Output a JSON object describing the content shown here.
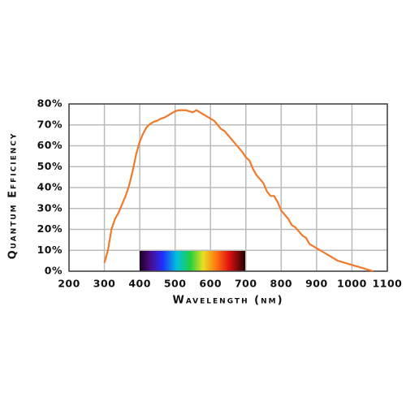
{
  "chart_data": {
    "type": "line",
    "x_label": "Wavelength (nm)",
    "y_label": "Quantum Efficiency",
    "x": [
      300,
      310,
      320,
      330,
      340,
      350,
      360,
      370,
      380,
      390,
      400,
      410,
      420,
      430,
      440,
      450,
      460,
      470,
      480,
      490,
      500,
      510,
      520,
      530,
      540,
      550,
      560,
      570,
      580,
      590,
      600,
      610,
      620,
      630,
      640,
      650,
      660,
      670,
      680,
      690,
      700,
      710,
      720,
      730,
      740,
      750,
      760,
      770,
      780,
      790,
      800,
      810,
      820,
      830,
      840,
      850,
      860,
      870,
      880,
      890,
      900,
      920,
      940,
      960,
      980,
      1000,
      1020,
      1040,
      1060
    ],
    "series": [
      {
        "color": "#f07a2a",
        "values": [
          4,
          10,
          20,
          25,
          28,
          32,
          36,
          41,
          48,
          56,
          62,
          66,
          69,
          70.5,
          71.5,
          72,
          73,
          73.5,
          74.5,
          75.5,
          76.5,
          77,
          77,
          77,
          76.5,
          76,
          77,
          76,
          75,
          74,
          73,
          72,
          70,
          68,
          67,
          65,
          63,
          61,
          59,
          57,
          54.5,
          53,
          49,
          46,
          44,
          42,
          38,
          36,
          36,
          33,
          29,
          27,
          25,
          22,
          21,
          19,
          17,
          16,
          13,
          12,
          11,
          9,
          7,
          5,
          4,
          3,
          2,
          1,
          0
        ]
      }
    ],
    "xlim": [
      200,
      1100
    ],
    "xticks": [
      200,
      300,
      400,
      500,
      600,
      700,
      800,
      900,
      1000,
      1100
    ],
    "ylim": [
      0,
      80
    ],
    "yticks": [
      {
        "value": 0,
        "label": "0%"
      },
      {
        "value": 10,
        "label": "10%"
      },
      {
        "value": 20,
        "label": "20%"
      },
      {
        "value": 30,
        "label": "30%"
      },
      {
        "value": 40,
        "label": "40%"
      },
      {
        "value": 50,
        "label": "50%"
      },
      {
        "value": 60,
        "label": "60%"
      },
      {
        "value": 70,
        "label": "70%"
      },
      {
        "value": 80,
        "label": "80%"
      }
    ],
    "grid": true
  }
}
